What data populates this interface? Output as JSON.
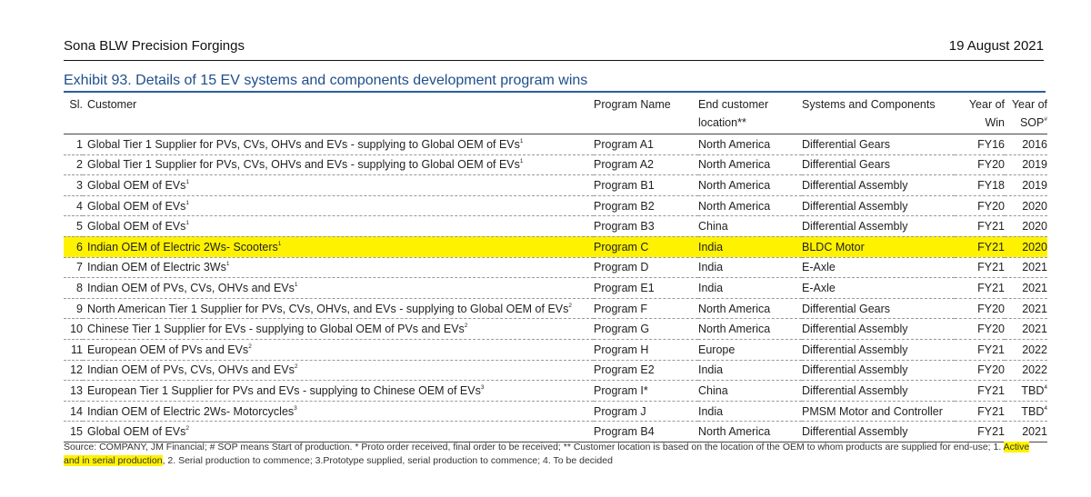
{
  "header": {
    "company": "Sona BLW Precision Forgings",
    "date": "19 August 2021"
  },
  "exhibit_title": "Exhibit 93.  Details of 15 EV systems and components development program wins",
  "columns": {
    "sl": "Sl.",
    "customer": "Customer",
    "program": "Program Name",
    "location": "End customer location**",
    "systems": "Systems and Components",
    "win": "Year of Win",
    "sop": "Year of SOP",
    "sop_mark": "#"
  },
  "rows": [
    {
      "sl": "1",
      "customer": "Global Tier 1 Supplier for PVs, CVs, OHVs and EVs - supplying to Global OEM of EVs",
      "note": "1",
      "program": "Program A1",
      "location": "North America",
      "system": "Differential Gears",
      "win": "FY16",
      "sop": "2016",
      "sop_note": ""
    },
    {
      "sl": "2",
      "customer": "Global Tier 1 Supplier for PVs, CVs, OHVs and EVs - supplying to Global OEM of EVs",
      "note": "1",
      "program": "Program A2",
      "location": "North America",
      "system": "Differential Gears",
      "win": "FY20",
      "sop": "2019",
      "sop_note": ""
    },
    {
      "sl": "3",
      "customer": "Global OEM of EVs",
      "note": "1",
      "program": "Program B1",
      "location": "North America",
      "system": "Differential Assembly",
      "win": "FY18",
      "sop": "2019",
      "sop_note": ""
    },
    {
      "sl": "4",
      "customer": "Global OEM of EVs",
      "note": "1",
      "program": "Program B2",
      "location": "North America",
      "system": "Differential Assembly",
      "win": "FY20",
      "sop": "2020",
      "sop_note": ""
    },
    {
      "sl": "5",
      "customer": "Global OEM of EVs",
      "note": "1",
      "program": "Program B3",
      "location": "China",
      "system": "Differential Assembly",
      "win": "FY21",
      "sop": "2020",
      "sop_note": ""
    },
    {
      "sl": "6",
      "customer": "Indian OEM of Electric 2Ws- Scooters",
      "note": "1",
      "program": "Program C",
      "location": "India",
      "system": "BLDC Motor",
      "win": "FY21",
      "sop": "2020",
      "sop_note": "",
      "highlight": true
    },
    {
      "sl": "7",
      "customer": "Indian OEM of Electric 3Ws",
      "note": "1",
      "program": "Program D",
      "location": "India",
      "system": "E-Axle",
      "win": "FY21",
      "sop": "2021",
      "sop_note": ""
    },
    {
      "sl": "8",
      "customer": "Indian OEM of PVs, CVs, OHVs and EVs",
      "note": "1",
      "program": "Program E1",
      "location": "India",
      "system": "E-Axle",
      "win": "FY21",
      "sop": "2021",
      "sop_note": ""
    },
    {
      "sl": "9",
      "customer": "North American Tier 1 Supplier for PVs, CVs, OHVs, and EVs - supplying to Global OEM of EVs",
      "note": "2",
      "program": "Program F",
      "location": "North America",
      "system": "Differential Gears",
      "win": "FY20",
      "sop": "2021",
      "sop_note": ""
    },
    {
      "sl": "10",
      "customer": "Chinese Tier 1 Supplier for EVs - supplying to Global OEM of PVs and EVs",
      "note": "2",
      "program": "Program G",
      "location": "North America",
      "system": "Differential Assembly",
      "win": "FY20",
      "sop": "2021",
      "sop_note": ""
    },
    {
      "sl": "11",
      "customer": "European OEM of PVs and EVs",
      "note": "2",
      "program": "Program H",
      "location": "Europe",
      "system": "Differential Assembly",
      "win": "FY21",
      "sop": "2022",
      "sop_note": ""
    },
    {
      "sl": "12",
      "customer": "Indian OEM of PVs, CVs, OHVs and EVs",
      "note": "2",
      "program": "Program E2",
      "location": "India",
      "system": "Differential Assembly",
      "win": "FY20",
      "sop": "2022",
      "sop_note": ""
    },
    {
      "sl": "13",
      "customer": "European Tier 1 Supplier for PVs and EVs - supplying to Chinese OEM of EVs",
      "note": "3",
      "program": "Program I*",
      "location": "China",
      "system": "Differential Assembly",
      "win": "FY21",
      "sop": "TBD",
      "sop_note": "4"
    },
    {
      "sl": "14",
      "customer": "Indian OEM of Electric 2Ws- Motorcycles",
      "note": "3",
      "program": "Program J",
      "location": "India",
      "system": "PMSM Motor and Controller",
      "win": "FY21",
      "sop": "TBD",
      "sop_note": "4"
    },
    {
      "sl": "15",
      "customer": "Global OEM of EVs",
      "note": "2",
      "program": "Program B4",
      "location": "North America",
      "system": "Differential Assembly",
      "win": "FY21",
      "sop": "2021",
      "sop_note": ""
    }
  ],
  "footnote": {
    "part1": "Source: COMPANY, JM Financial; # SOP means Start of production. * Proto order received, final order to be received; ** Customer location is based on the location of the OEM to whom products are supplied for end-use; 1. ",
    "highlight": "Active and in serial production",
    "part2": ", 2. Serial production to commence; 3.Prototype supplied, serial production to commence; 4. To be decided"
  }
}
